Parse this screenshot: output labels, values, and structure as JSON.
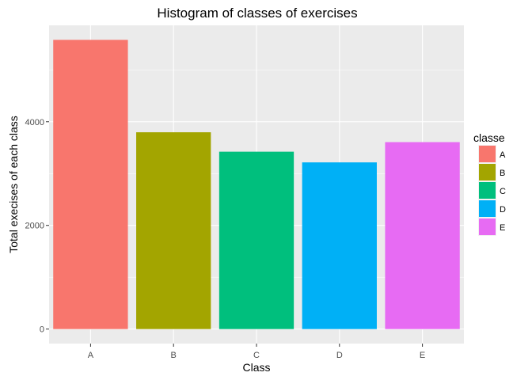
{
  "chart_data": {
    "type": "bar",
    "title": "Histogram of classes of exercises",
    "xlabel": "Class",
    "ylabel": "Total execises of each class",
    "categories": [
      "A",
      "B",
      "C",
      "D",
      "E"
    ],
    "values": [
      5580,
      3797,
      3422,
      3216,
      3607
    ],
    "colors": [
      "#F8766D",
      "#A3A500",
      "#00BF7D",
      "#00B0F6",
      "#E76BF3"
    ],
    "ylim": [
      -280,
      5860
    ],
    "yticks": [
      0,
      2000,
      4000
    ],
    "grid": true,
    "background": "#EBEBEB",
    "legend": {
      "title": "classe",
      "placement": "right",
      "entries": [
        "A",
        "B",
        "C",
        "D",
        "E"
      ]
    }
  }
}
